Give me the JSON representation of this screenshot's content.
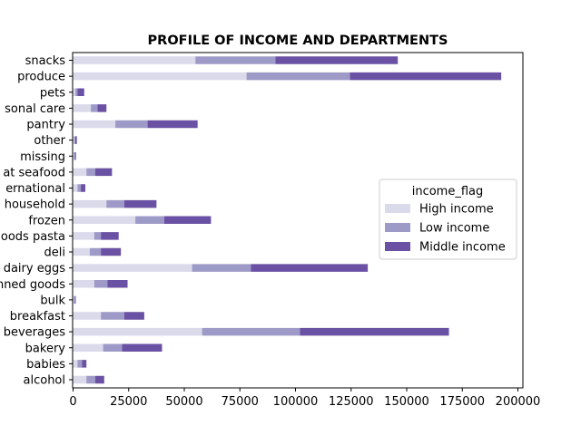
{
  "chart_data": {
    "type": "bar",
    "orientation": "horizontal",
    "stacked": true,
    "title": "PROFILE OF INCOME AND DEPARTMENTS",
    "xlabel": "",
    "ylabel": "",
    "xlim": [
      0,
      205000
    ],
    "xticks": [
      0,
      25000,
      50000,
      75000,
      100000,
      125000,
      150000,
      175000,
      200000
    ],
    "xtick_labels": [
      "0",
      "25000",
      "50000",
      "75000",
      "100000",
      "125000",
      "150000",
      "175000",
      "200000"
    ],
    "categories": [
      "alcohol",
      "babies",
      "bakery",
      "beverages",
      "breakfast",
      "bulk",
      "canned goods",
      "dairy eggs",
      "deli",
      "dry goods pasta",
      "frozen",
      "household",
      "international",
      "meat seafood",
      "missing",
      "other",
      "pantry",
      "personal care",
      "pets",
      "produce",
      "snacks"
    ],
    "category_labels": [
      "alcohol",
      "babies",
      "bakery",
      "beverages",
      "breakfast",
      "bulk",
      "nned goods",
      "dairy eggs",
      "deli",
      "oods pasta",
      "frozen",
      "household",
      "ernational",
      "at seafood",
      "missing",
      "other",
      "pantry",
      "sonal care",
      "pets",
      "produce",
      "snacks"
    ],
    "series": [
      {
        "name": "High income",
        "color": "#dadaeb",
        "values": [
          6000,
          2000,
          13500,
          58000,
          12500,
          500,
          9500,
          53500,
          7500,
          9500,
          28000,
          15000,
          2000,
          6000,
          500,
          500,
          19000,
          8000,
          1000,
          78000,
          55000
        ]
      },
      {
        "name": "Low income",
        "color": "#9e9ac8",
        "values": [
          4000,
          2000,
          8500,
          44000,
          10500,
          300,
          6000,
          26500,
          5000,
          3000,
          13000,
          8000,
          1500,
          4000,
          300,
          500,
          14500,
          3000,
          1000,
          46500,
          36000
        ]
      },
      {
        "name": "Middle income",
        "color": "#6a51a3",
        "values": [
          4000,
          2000,
          18000,
          67000,
          9000,
          400,
          9000,
          52500,
          9000,
          8000,
          21000,
          14500,
          2000,
          7500,
          500,
          700,
          22500,
          4000,
          3000,
          68000,
          55000
        ]
      }
    ],
    "legend": {
      "title": "income_flag",
      "position": "center-right"
    },
    "grid": false
  }
}
